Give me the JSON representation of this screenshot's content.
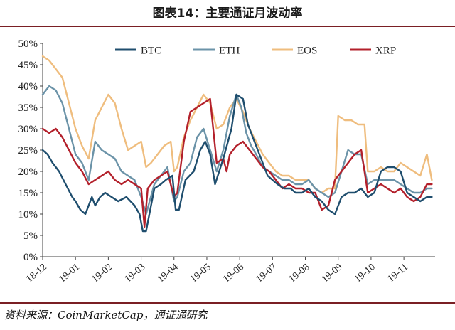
{
  "title": "图表14：主要通证月波动率",
  "source": "资料来源：CoinMarketCap，通证通研究",
  "colors": {
    "BTC": "#1f4e6e",
    "ETH": "#6b93a8",
    "EOS": "#efbd7e",
    "XRP": "#b3202b",
    "rule": "#7a1f24",
    "axis": "#444444"
  },
  "chart_data": {
    "type": "line",
    "xlabel": "",
    "ylabel": "",
    "ylim": [
      0,
      50
    ],
    "yticks": [
      "0%",
      "5%",
      "10%",
      "15%",
      "20%",
      "25%",
      "30%",
      "35%",
      "40%",
      "45%",
      "50%"
    ],
    "xticks": [
      "18-12",
      "19-01",
      "19-02",
      "19-03",
      "19-04",
      "19-05",
      "19-06",
      "19-07",
      "19-08",
      "19-09",
      "19-10",
      "19-11"
    ],
    "legend_position": "top",
    "grid": false,
    "series": [
      {
        "name": "BTC",
        "x": [
          0,
          0.15,
          0.3,
          0.5,
          0.7,
          0.9,
          1.0,
          1.15,
          1.3,
          1.5,
          1.6,
          1.75,
          1.9,
          2.1,
          2.3,
          2.55,
          2.8,
          2.95,
          3.05,
          3.15,
          3.4,
          3.6,
          3.75,
          3.95,
          4.05,
          4.15,
          4.35,
          4.6,
          4.8,
          4.95,
          5.1,
          5.25,
          5.5,
          5.75,
          5.9,
          6.1,
          6.25,
          6.4,
          6.55,
          6.7,
          6.85,
          7.0,
          7.15,
          7.35,
          7.55,
          7.7,
          7.9,
          8.1,
          8.3,
          8.5,
          8.7,
          8.9,
          9.1,
          9.3,
          9.5,
          9.7,
          9.9,
          10.1,
          10.3,
          10.5,
          10.7,
          10.9,
          11.1,
          11.3,
          11.5,
          11.7,
          11.85
        ],
        "values": [
          25,
          24,
          22,
          20,
          17,
          14,
          13,
          11,
          10,
          14,
          12,
          14,
          15,
          14,
          13,
          14,
          12,
          10,
          6,
          6,
          16,
          17,
          18,
          19,
          11,
          11,
          18,
          20,
          25,
          27,
          24,
          17,
          23,
          30,
          38,
          37,
          31,
          28,
          25,
          22,
          19,
          18,
          17,
          16,
          16,
          15,
          15,
          16,
          14,
          13,
          11,
          10,
          14,
          15,
          15,
          16,
          14,
          15,
          20,
          21,
          21,
          20,
          15,
          14,
          13,
          14,
          14
        ]
      },
      {
        "name": "ETH",
        "x": [
          0,
          0.2,
          0.4,
          0.6,
          0.8,
          1.0,
          1.2,
          1.4,
          1.6,
          1.8,
          2.0,
          2.2,
          2.4,
          2.6,
          2.8,
          3.0,
          3.15,
          3.4,
          3.6,
          3.8,
          4.0,
          4.1,
          4.3,
          4.5,
          4.7,
          4.9,
          5.1,
          5.3,
          5.5,
          5.7,
          5.9,
          6.05,
          6.2,
          6.35,
          6.5,
          6.7,
          6.9,
          7.1,
          7.3,
          7.5,
          7.7,
          7.9,
          8.1,
          8.3,
          8.5,
          8.7,
          8.9,
          9.1,
          9.3,
          9.5,
          9.7,
          9.9,
          10.1,
          10.3,
          10.5,
          10.7,
          10.9,
          11.1,
          11.3,
          11.5,
          11.7,
          11.85
        ],
        "values": [
          38,
          40,
          39,
          36,
          30,
          24,
          22,
          18,
          27,
          25,
          24,
          23,
          20,
          19,
          18,
          14,
          10,
          17,
          19,
          21,
          13,
          14,
          20,
          22,
          28,
          30,
          25,
          20,
          25,
          33,
          38,
          35,
          29,
          26,
          24,
          21,
          20,
          19,
          18,
          18,
          17,
          17,
          18,
          16,
          15,
          14,
          15,
          20,
          25,
          24,
          24,
          17,
          18,
          18,
          18,
          18,
          17,
          16,
          15,
          15,
          16,
          16
        ]
      },
      {
        "name": "EOS",
        "x": [
          0,
          0.2,
          0.4,
          0.6,
          0.8,
          1.0,
          1.2,
          1.4,
          1.6,
          1.8,
          2.0,
          2.2,
          2.4,
          2.6,
          2.8,
          3.0,
          3.15,
          3.3,
          3.5,
          3.7,
          3.9,
          4.0,
          4.1,
          4.3,
          4.5,
          4.7,
          4.9,
          5.1,
          5.3,
          5.5,
          5.7,
          5.9,
          6.1,
          6.3,
          6.5,
          6.7,
          6.9,
          7.1,
          7.3,
          7.5,
          7.7,
          7.9,
          8.1,
          8.3,
          8.5,
          8.7,
          8.9,
          9.0,
          9.2,
          9.4,
          9.6,
          9.8,
          9.9,
          10.1,
          10.3,
          10.5,
          10.7,
          10.9,
          11.1,
          11.3,
          11.5,
          11.7,
          11.85
        ],
        "values": [
          47,
          46,
          44,
          42,
          36,
          30,
          26,
          23,
          32,
          35,
          38,
          36,
          30,
          25,
          26,
          27,
          21,
          22,
          24,
          26,
          27,
          20,
          21,
          28,
          32,
          35,
          38,
          36,
          30,
          31,
          35,
          37,
          34,
          30,
          27,
          24,
          22,
          20,
          19,
          19,
          18,
          18,
          18,
          16,
          15,
          16,
          16,
          33,
          32,
          32,
          31,
          31,
          20,
          20,
          21,
          20,
          20,
          22,
          21,
          20,
          19,
          24,
          18
        ]
      },
      {
        "name": "XRP",
        "x": [
          0,
          0.2,
          0.4,
          0.6,
          0.8,
          1.0,
          1.2,
          1.4,
          1.6,
          1.8,
          2.0,
          2.2,
          2.4,
          2.6,
          2.8,
          3.0,
          3.1,
          3.2,
          3.4,
          3.6,
          3.8,
          4.0,
          4.1,
          4.3,
          4.5,
          4.7,
          4.9,
          5.1,
          5.3,
          5.5,
          5.6,
          5.7,
          5.9,
          6.1,
          6.3,
          6.5,
          6.7,
          6.9,
          7.1,
          7.3,
          7.5,
          7.7,
          7.9,
          8.1,
          8.3,
          8.5,
          8.7,
          8.9,
          9.1,
          9.3,
          9.5,
          9.7,
          9.9,
          10.1,
          10.3,
          10.5,
          10.7,
          10.9,
          11.1,
          11.3,
          11.5,
          11.7,
          11.85
        ],
        "values": [
          30,
          29,
          30,
          28,
          25,
          22,
          20,
          17,
          18,
          19,
          20,
          18,
          17,
          18,
          17,
          16,
          7,
          16,
          18,
          19,
          20,
          14,
          15,
          27,
          34,
          35,
          36,
          37,
          22,
          23,
          20,
          24,
          26,
          27,
          25,
          23,
          21,
          20,
          18,
          16,
          17,
          16,
          16,
          15,
          15,
          11,
          12,
          18,
          20,
          22,
          24,
          25,
          15,
          16,
          17,
          16,
          15,
          16,
          14,
          13,
          14,
          17,
          17
        ]
      }
    ]
  }
}
